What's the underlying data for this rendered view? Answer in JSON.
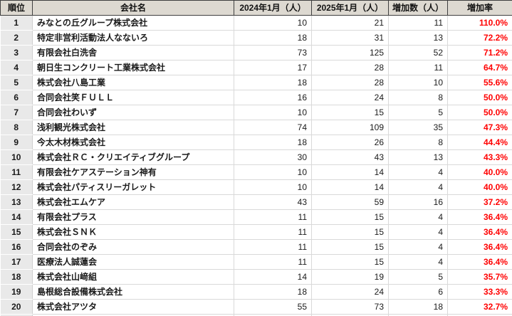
{
  "table": {
    "headers": [
      "順位",
      "会社名",
      "2024年1月（人）",
      "2025年1月（人）",
      "増加数（人）",
      "増加率"
    ],
    "rows": [
      {
        "rank": "1",
        "company": "みなとの丘グループ株式会社",
        "y2024": "10",
        "y2025": "21",
        "increase": "11",
        "rate": "110.0%"
      },
      {
        "rank": "2",
        "company": "特定非営利活動法人なないろ",
        "y2024": "18",
        "y2025": "31",
        "increase": "13",
        "rate": "72.2%"
      },
      {
        "rank": "3",
        "company": "有限会社白洗舎",
        "y2024": "73",
        "y2025": "125",
        "increase": "52",
        "rate": "71.2%"
      },
      {
        "rank": "4",
        "company": "朝日生コンクリート工業株式会社",
        "y2024": "17",
        "y2025": "28",
        "increase": "11",
        "rate": "64.7%"
      },
      {
        "rank": "5",
        "company": "株式会社八島工業",
        "y2024": "18",
        "y2025": "28",
        "increase": "10",
        "rate": "55.6%"
      },
      {
        "rank": "6",
        "company": "合同会社笑ＦＵＬＬ",
        "y2024": "16",
        "y2025": "24",
        "increase": "8",
        "rate": "50.0%"
      },
      {
        "rank": "7",
        "company": "合同会社わいず",
        "y2024": "10",
        "y2025": "15",
        "increase": "5",
        "rate": "50.0%"
      },
      {
        "rank": "8",
        "company": "浅利観光株式会社",
        "y2024": "74",
        "y2025": "109",
        "increase": "35",
        "rate": "47.3%"
      },
      {
        "rank": "9",
        "company": "今太木材株式会社",
        "y2024": "18",
        "y2025": "26",
        "increase": "8",
        "rate": "44.4%"
      },
      {
        "rank": "10",
        "company": "株式会社ＲＣ・クリエイティブグループ",
        "y2024": "30",
        "y2025": "43",
        "increase": "13",
        "rate": "43.3%"
      },
      {
        "rank": "11",
        "company": "有限会社ケアステーション神有",
        "y2024": "10",
        "y2025": "14",
        "increase": "4",
        "rate": "40.0%"
      },
      {
        "rank": "12",
        "company": "株式会社パティスリーガレット",
        "y2024": "10",
        "y2025": "14",
        "increase": "4",
        "rate": "40.0%"
      },
      {
        "rank": "13",
        "company": "株式会社エムケア",
        "y2024": "43",
        "y2025": "59",
        "increase": "16",
        "rate": "37.2%"
      },
      {
        "rank": "14",
        "company": "有限会社プラス",
        "y2024": "11",
        "y2025": "15",
        "increase": "4",
        "rate": "36.4%"
      },
      {
        "rank": "15",
        "company": "株式会社ＳＮＫ",
        "y2024": "11",
        "y2025": "15",
        "increase": "4",
        "rate": "36.4%"
      },
      {
        "rank": "16",
        "company": "合同会社のぞみ",
        "y2024": "11",
        "y2025": "15",
        "increase": "4",
        "rate": "36.4%"
      },
      {
        "rank": "17",
        "company": "医療法人誠蓮会",
        "y2024": "11",
        "y2025": "15",
        "increase": "4",
        "rate": "36.4%"
      },
      {
        "rank": "18",
        "company": "株式会社山﨑組",
        "y2024": "14",
        "y2025": "19",
        "increase": "5",
        "rate": "35.7%"
      },
      {
        "rank": "19",
        "company": "島根総合設備株式会社",
        "y2024": "18",
        "y2025": "24",
        "increase": "6",
        "rate": "33.3%"
      },
      {
        "rank": "20",
        "company": "株式会社アツタ",
        "y2024": "55",
        "y2025": "73",
        "increase": "18",
        "rate": "32.7%"
      }
    ]
  },
  "colors": {
    "header_bg": "#ddd9d1",
    "header_border": "#3f3f3f",
    "rank_column_bg": "#e9e9e9",
    "gridline": "#d9d9d9",
    "rate_text": "#ff0000",
    "body_text": "#1a1a1a"
  }
}
